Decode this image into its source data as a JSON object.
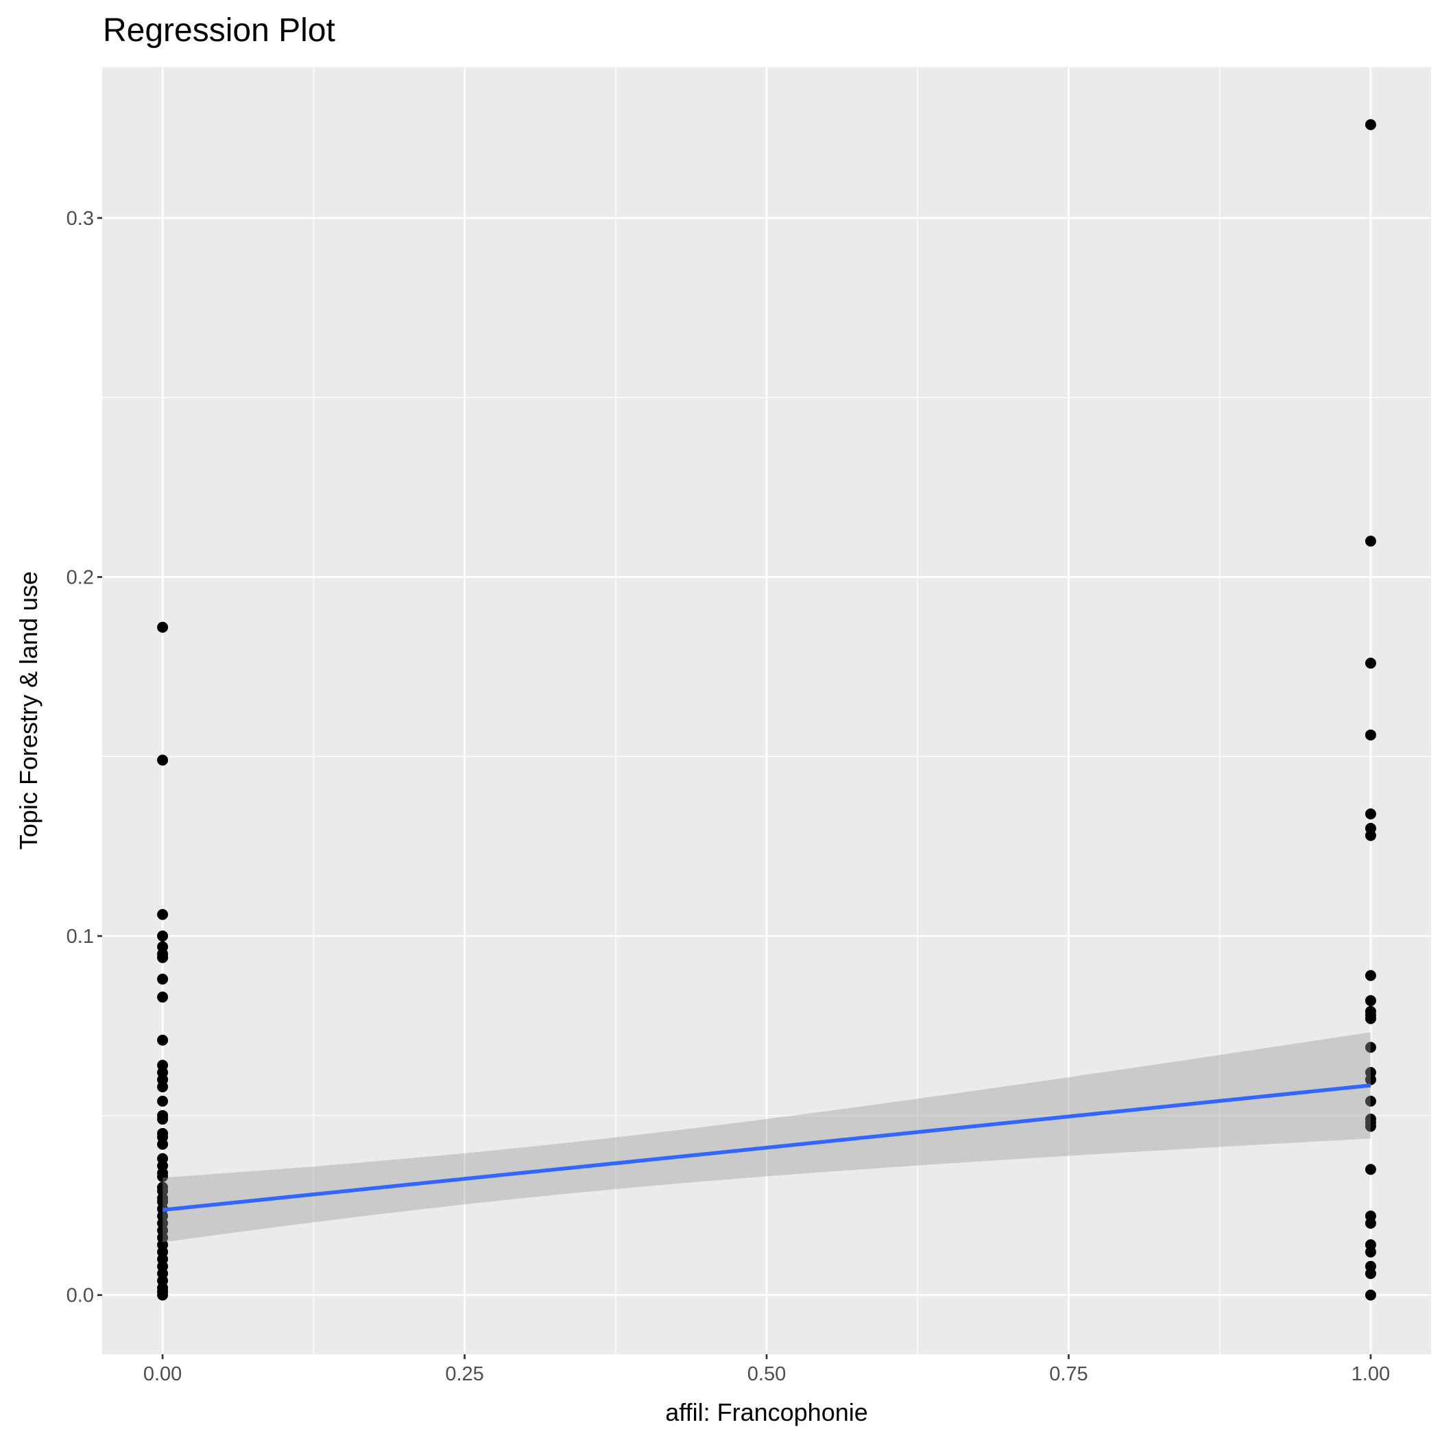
{
  "chart_data": {
    "type": "scatter",
    "title": "Regression Plot",
    "xlabel": "affil: Francophonie",
    "ylabel": "Topic Forestry & land use",
    "xlim": [
      -0.05,
      1.05
    ],
    "ylim": [
      -0.0165,
      0.342
    ],
    "x_ticks": [
      0,
      0.25,
      0.5,
      0.75,
      1
    ],
    "x_tick_labels": [
      "0.00",
      "0.25",
      "0.50",
      "0.75",
      "1.00"
    ],
    "y_ticks": [
      0,
      0.1,
      0.2,
      0.3
    ],
    "y_tick_labels": [
      "0.0",
      "0.1",
      "0.2",
      "0.3"
    ],
    "grid": true,
    "series": [
      {
        "name": "group-0",
        "x": 0,
        "values": [
          0.186,
          0.149,
          0.106,
          0.1,
          0.097,
          0.095,
          0.094,
          0.088,
          0.083,
          0.071,
          0.064,
          0.062,
          0.06,
          0.058,
          0.054,
          0.05,
          0.049,
          0.045,
          0.044,
          0.042,
          0.038,
          0.036,
          0.034,
          0.033,
          0.03,
          0.029,
          0.027,
          0.026,
          0.024,
          0.022,
          0.02,
          0.018,
          0.016,
          0.014,
          0.012,
          0.01,
          0.008,
          0.006,
          0.004,
          0.002,
          0.001,
          0.0
        ]
      },
      {
        "name": "group-1",
        "x": 1,
        "values": [
          0.326,
          0.21,
          0.176,
          0.156,
          0.134,
          0.13,
          0.128,
          0.089,
          0.082,
          0.079,
          0.078,
          0.077,
          0.069,
          0.062,
          0.06,
          0.054,
          0.049,
          0.048,
          0.047,
          0.035,
          0.022,
          0.02,
          0.014,
          0.012,
          0.008,
          0.006,
          0.0
        ]
      }
    ],
    "regression": {
      "intercept": 0.0237,
      "slope": 0.0347,
      "ci_halfwidth_at_0": 0.009,
      "ci_halfwidth_at_1": 0.0148,
      "x_mean": 0.3
    },
    "colors": {
      "panel": "#ebebeb",
      "grid": "#ffffff",
      "points": "#000000",
      "line": "#3366ff",
      "band": "#999999"
    }
  }
}
